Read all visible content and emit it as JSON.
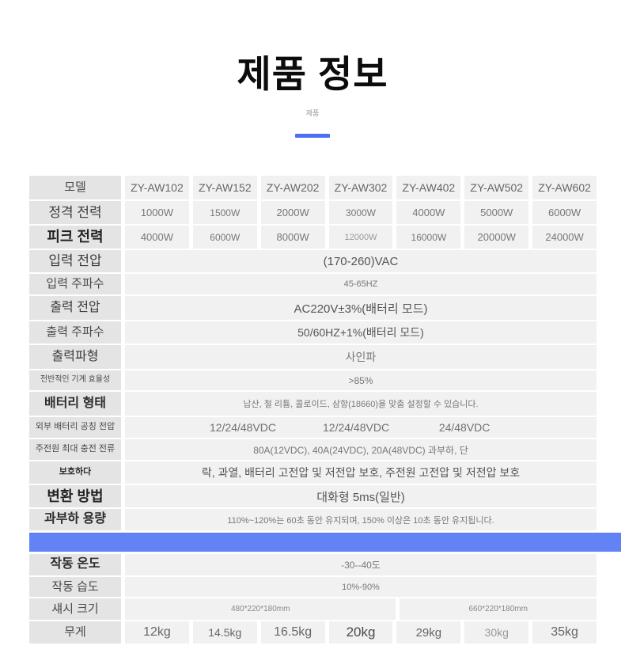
{
  "page": {
    "title": "제품 정보",
    "subtitle": "제품",
    "colors": {
      "accent_underline": "#4c6ef5",
      "separator_band": "#6283f3",
      "label_cell_bg": "#e4e4e4",
      "value_cell_bg": "#f1f1f1"
    }
  },
  "table": {
    "models": {
      "label": "모델",
      "values": [
        "ZY-AW102",
        "ZY-AW152",
        "ZY-AW202",
        "ZY-AW302",
        "ZY-AW402",
        "ZY-AW502",
        "ZY-AW602"
      ]
    },
    "rated_power": {
      "label": "정격 전력",
      "values": [
        "1000W",
        "1500W",
        "2000W",
        "3000W",
        "4000W",
        "5000W",
        "6000W"
      ]
    },
    "peak_power": {
      "label": "피크 전력",
      "values": [
        "4000W",
        "6000W",
        "8000W",
        "12000W",
        "16000W",
        "20000W",
        "24000W"
      ]
    },
    "input_voltage": {
      "label": "입력 전압",
      "value": "(170-260)VAC"
    },
    "input_frequency": {
      "label": "입력 주파수",
      "value": "45-65HZ"
    },
    "output_voltage": {
      "label": "출력 전압",
      "value": "AC220V±3%(배터리 모드)"
    },
    "output_frequency": {
      "label": "출력 주파수",
      "value": "50/60HZ+1%(배터리 모드)"
    },
    "output_waveform": {
      "label": "출력파형",
      "value": "사인파"
    },
    "efficiency": {
      "label": "전반적인 기계 효율성",
      "value": ">85%"
    },
    "battery_type": {
      "label": "배터리 형태",
      "value": "납산, 철 리튬, 콜로이드, 삼항(18660)을 맞춤 설정할 수 있습니다."
    },
    "battery_nominal_voltage": {
      "label": "외부 배터리 공칭 전압",
      "values": [
        "12/24/48VDC",
        "12/24/48VDC",
        "24/48VDC"
      ]
    },
    "max_charge_current": {
      "label": "주전원 최대 충전 전류",
      "value": "80A(12VDC), 40A(24VDC), 20A(48VDC) 과부하, 단"
    },
    "protection": {
      "label": "보호하다",
      "value": "락, 과열, 배터리 고전압 및 저전압 보호, 주전원 고전압 및 저전압 보호"
    },
    "transfer_method": {
      "label": "변환 방법",
      "value": "대화형 5ms(일반)"
    },
    "overload_capacity": {
      "label": "과부하 용량",
      "value": "110%~120%는 60초 동안 유지되며, 150% 이상은 10초 동안 유지됩니다."
    },
    "operating_temperature": {
      "label": "작동 온도",
      "value": "-30--40도"
    },
    "operating_humidity": {
      "label": "작동 습도",
      "value": "10%-90%"
    },
    "chassis_size": {
      "label": "섀시 크기",
      "values": [
        "480*220*180mm",
        "660*220*180mm"
      ]
    },
    "weight": {
      "label": "무게",
      "values": [
        "12kg",
        "14.5kg",
        "16.5kg",
        "20kg",
        "29kg",
        "30kg",
        "35kg"
      ]
    }
  }
}
